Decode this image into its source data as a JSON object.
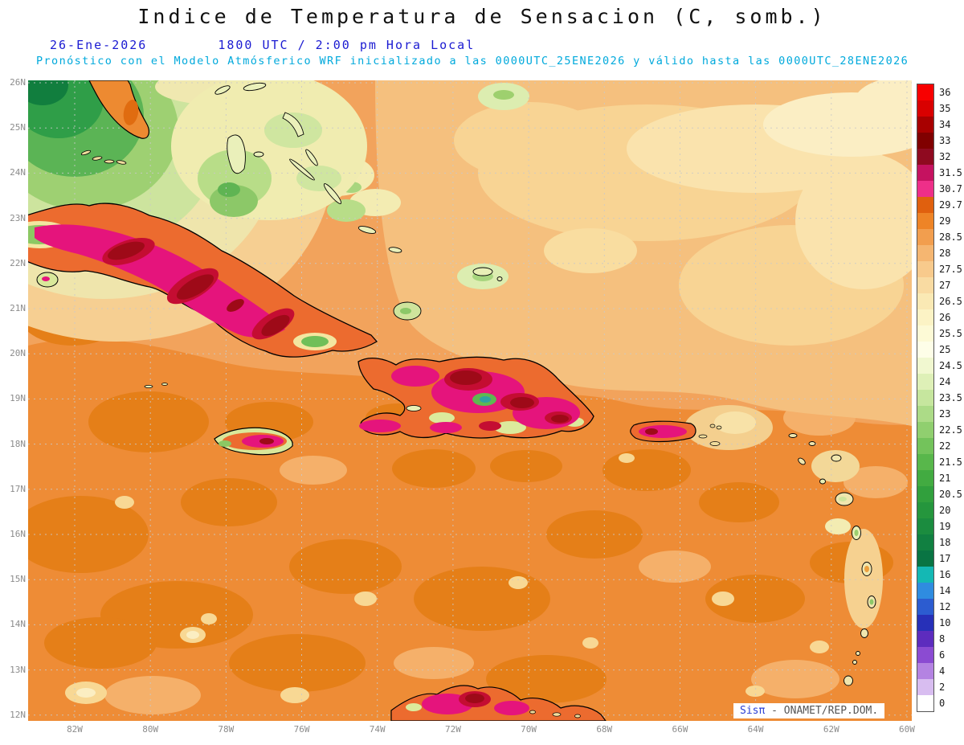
{
  "header": {
    "title": "Indice de Temperatura de Sensacion (C, somb.)",
    "date": "26-Ene-2026",
    "time_line": "1800 UTC / 2:00 pm Hora Local",
    "model_line": "Pronóstico con el Modelo Atmósferico WRF inicializado a las 0000UTC_25ENE2026 y válido hasta las  0000UTC_28ENE2026"
  },
  "axes": {
    "lat_labels": [
      "26N",
      "25N",
      "24N",
      "23N",
      "22N",
      "21N",
      "20N",
      "19N",
      "18N",
      "17N",
      "16N",
      "15N",
      "14N",
      "13N",
      "12N"
    ],
    "lon_labels": [
      "82W",
      "80W",
      "78W",
      "76W",
      "74W",
      "72W",
      "70W",
      "68W",
      "66W",
      "64W",
      "62W",
      "60W"
    ]
  },
  "colorbar": {
    "entries": [
      {
        "label": "36",
        "color": "#f80000"
      },
      {
        "label": "35",
        "color": "#d90000"
      },
      {
        "label": "34",
        "color": "#a80000"
      },
      {
        "label": "33",
        "color": "#800000"
      },
      {
        "label": "32",
        "color": "#8f0a20"
      },
      {
        "label": "31.5",
        "color": "#c51260"
      },
      {
        "label": "30.7",
        "color": "#ee2f89"
      },
      {
        "label": "29.7",
        "color": "#e0600e"
      },
      {
        "label": "29",
        "color": "#ee8426"
      },
      {
        "label": "28.5",
        "color": "#f29e4e"
      },
      {
        "label": "28",
        "color": "#f5b671"
      },
      {
        "label": "27.5",
        "color": "#f8ca8c"
      },
      {
        "label": "27",
        "color": "#f9dba2"
      },
      {
        "label": "26.5",
        "color": "#fae9b4"
      },
      {
        "label": "26",
        "color": "#fcf3c5"
      },
      {
        "label": "25.5",
        "color": "#fdfad6"
      },
      {
        "label": "25",
        "color": "#fefee8"
      },
      {
        "label": "24.5",
        "color": "#f1f8d0"
      },
      {
        "label": "24",
        "color": "#def0b7"
      },
      {
        "label": "23.5",
        "color": "#c6e69e"
      },
      {
        "label": "23",
        "color": "#acdb87"
      },
      {
        "label": "22.5",
        "color": "#90cf6f"
      },
      {
        "label": "22",
        "color": "#73c35b"
      },
      {
        "label": "21.5",
        "color": "#58b74b"
      },
      {
        "label": "21",
        "color": "#42ab41"
      },
      {
        "label": "20.5",
        "color": "#31a03d"
      },
      {
        "label": "20",
        "color": "#25963d"
      },
      {
        "label": "19",
        "color": "#1b8c3f"
      },
      {
        "label": "18",
        "color": "#118041"
      },
      {
        "label": "17",
        "color": "#097443"
      },
      {
        "label": "16",
        "color": "#14b8b4"
      },
      {
        "label": "14",
        "color": "#2f8ce0"
      },
      {
        "label": "12",
        "color": "#2c5cd0"
      },
      {
        "label": "10",
        "color": "#2730b8"
      },
      {
        "label": "8",
        "color": "#5d2cbe"
      },
      {
        "label": "6",
        "color": "#8b4bd2"
      },
      {
        "label": "4",
        "color": "#b483e2"
      },
      {
        "label": "2",
        "color": "#d8bdf0"
      },
      {
        "label": "0",
        "color": "#ffffff"
      }
    ]
  },
  "watermark": {
    "brand": "Sisπ",
    "rest": "- ONAMET/REP.DOM."
  },
  "colors": {
    "title_black": "#111111",
    "date_blue": "#1b1bd2",
    "note_cyan": "#00a9dc",
    "axis_gray": "#8c8c8c",
    "ocean_base_orange": "#f2a35c",
    "hot_magenta": "#e5147c",
    "hot_dark_red": "#9e0a18"
  }
}
